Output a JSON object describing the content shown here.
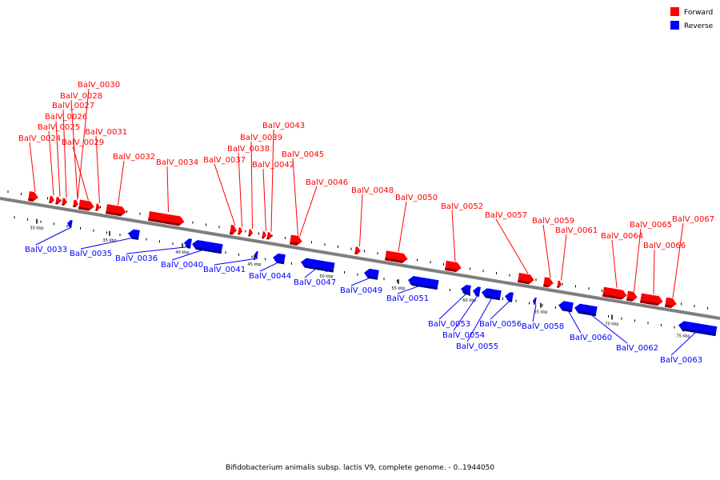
{
  "legend": {
    "forward": {
      "label": "Forward",
      "color": "#ff0000"
    },
    "reverse": {
      "label": "Reverse",
      "color": "#0000ff"
    }
  },
  "caption": "Bifidobacterium animalis subsp. lactis V9, complete genome. - 0..1944050",
  "backbone_color": "#7f7f7f",
  "axis_ticks": [
    "30 kbp",
    "35 kbp",
    "40 kbp",
    "45 kbp",
    "50 kbp",
    "55 kbp",
    "60 kbp",
    "65 kbp",
    "70 kbp",
    "75 kbp"
  ],
  "genes_forward": [
    "BalV_0024",
    "BalV_0025",
    "BalV_0026",
    "BalV_0027",
    "BalV_0028",
    "BalV_0029",
    "BalV_0030",
    "BalV_0031",
    "BalV_0032",
    "BalV_0034",
    "BalV_0037",
    "BalV_0038",
    "BalV_0039",
    "BalV_0042",
    "BalV_0043",
    "BalV_0045",
    "BalV_0046",
    "BalV_0048",
    "BalV_0050",
    "BalV_0052",
    "BalV_0057",
    "BalV_0059",
    "BalV_0061",
    "BalV_0064",
    "BalV_0065",
    "BalV_0066",
    "BalV_0067"
  ],
  "genes_reverse": [
    "BalV_0033",
    "BalV_0035",
    "BalV_0036",
    "BalV_0040",
    "BalV_0041",
    "BalV_0044",
    "BalV_0047",
    "BalV_0049",
    "BalV_0051",
    "BalV_0053",
    "BalV_0054",
    "BalV_0055",
    "BalV_0056",
    "BalV_0058",
    "BalV_0060",
    "BalV_0062",
    "BalV_0063"
  ]
}
